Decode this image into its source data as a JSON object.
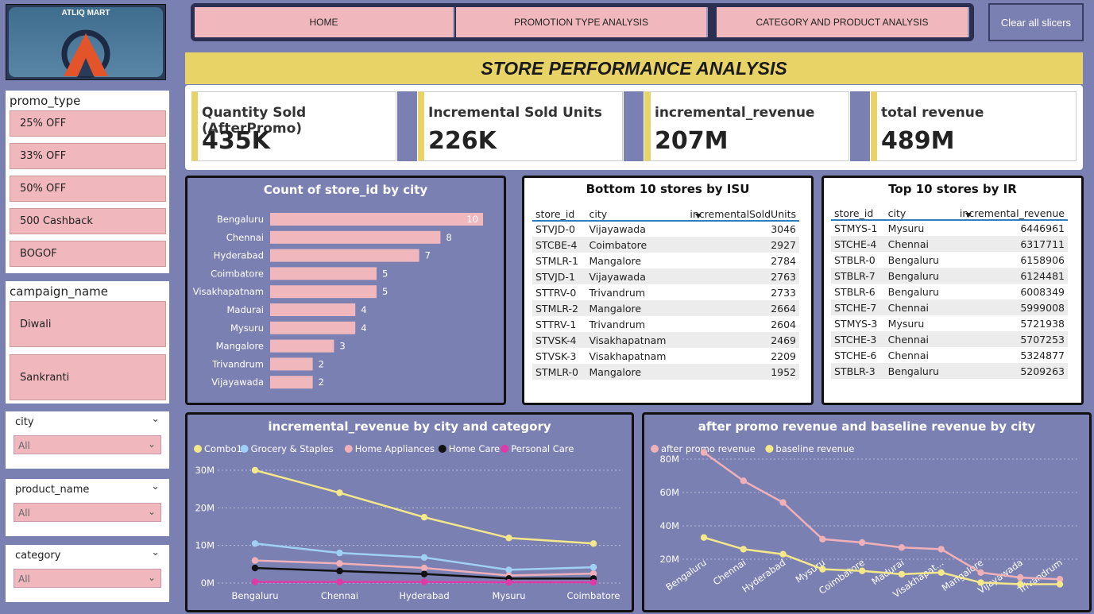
{
  "logo": {
    "brand": "ATLIQ MART"
  },
  "nav": {
    "home": "HOME",
    "promo": "PROMOTION TYPE ANALYSIS",
    "category": "CATEGORY AND PRODUCT ANALYSIS",
    "clear": "Clear all slicers"
  },
  "page_title": "STORE PERFORMANCE ANALYSIS",
  "kpis": [
    {
      "label": "Quantity Sold (AfterPromo)",
      "value": "435K"
    },
    {
      "label": "Incremental Sold Units",
      "value": "226K"
    },
    {
      "label": "incremental_revenue",
      "value": "207M"
    },
    {
      "label": "total revenue",
      "value": "489M"
    }
  ],
  "slicers": {
    "promo_type": {
      "title": "promo_type",
      "items": [
        "25% OFF",
        "33% OFF",
        "50% OFF",
        "500 Cashback",
        "BOGOF"
      ]
    },
    "campaign": {
      "title": "campaign_name",
      "items": [
        "Diwali",
        "Sankranti"
      ]
    },
    "city": {
      "title": "city",
      "value": "All"
    },
    "product": {
      "title": "product_name",
      "value": "All"
    },
    "category": {
      "title": "category",
      "value": "All"
    }
  },
  "colors": {
    "pink": "#f0b8bd",
    "yellow": "#e8d466",
    "bg": "#7b80b3"
  },
  "bottom10": {
    "title": "Bottom 10 stores by ISU",
    "headers": [
      "store_id",
      "city",
      "incrementalSoldUnits"
    ],
    "rows": [
      [
        "STVJD-0",
        "Vijayawada",
        "3046"
      ],
      [
        "STCBE-4",
        "Coimbatore",
        "2927"
      ],
      [
        "STMLR-1",
        "Mangalore",
        "2784"
      ],
      [
        "STVJD-1",
        "Vijayawada",
        "2763"
      ],
      [
        "STTRV-0",
        "Trivandrum",
        "2733"
      ],
      [
        "STMLR-2",
        "Mangalore",
        "2664"
      ],
      [
        "STTRV-1",
        "Trivandrum",
        "2604"
      ],
      [
        "STVSK-4",
        "Visakhapatnam",
        "2469"
      ],
      [
        "STVSK-3",
        "Visakhapatnam",
        "2209"
      ],
      [
        "STMLR-0",
        "Mangalore",
        "1952"
      ]
    ]
  },
  "top10": {
    "title": "Top 10 stores by IR",
    "headers": [
      "store_id",
      "city",
      "incremental_revenue"
    ],
    "rows": [
      [
        "STMYS-1",
        "Mysuru",
        "6446961"
      ],
      [
        "STCHE-4",
        "Chennai",
        "6317711"
      ],
      [
        "STBLR-0",
        "Bengaluru",
        "6158906"
      ],
      [
        "STBLR-7",
        "Bengaluru",
        "6124481"
      ],
      [
        "STBLR-6",
        "Bengaluru",
        "6008349"
      ],
      [
        "STCHE-7",
        "Chennai",
        "5999008"
      ],
      [
        "STMYS-3",
        "Mysuru",
        "5721938"
      ],
      [
        "STCHE-3",
        "Chennai",
        "5707253"
      ],
      [
        "STCHE-6",
        "Chennai",
        "5324877"
      ],
      [
        "STBLR-3",
        "Bengaluru",
        "5209263"
      ]
    ]
  },
  "chart_data": [
    {
      "type": "bar",
      "title": "Count of store_id by city",
      "categories": [
        "Bengaluru",
        "Chennai",
        "Hyderabad",
        "Coimbatore",
        "Visakhapatnam",
        "Madurai",
        "Mysuru",
        "Mangalore",
        "Trivandrum",
        "Vijayawada"
      ],
      "values": [
        10,
        8,
        7,
        5,
        5,
        4,
        4,
        3,
        2,
        2
      ],
      "color": "#f0b8bd"
    },
    {
      "type": "line",
      "title": "incremental_revenue by city and category",
      "categories": [
        "Bengaluru",
        "Chennai",
        "Hyderabad",
        "Mysuru",
        "Coimbatore"
      ],
      "yticks": [
        "0M",
        "10M",
        "20M",
        "30M"
      ],
      "ylim": [
        0,
        30
      ],
      "series": [
        {
          "name": "Combo1",
          "color": "#f5e88a",
          "values": [
            30,
            24,
            17.5,
            12,
            10.5
          ]
        },
        {
          "name": "Grocery & Staples",
          "color": "#9fd0f5",
          "values": [
            10.5,
            8,
            6.8,
            3.5,
            4.2
          ]
        },
        {
          "name": "Home Appliances",
          "color": "#f0b0b8",
          "values": [
            6,
            5.2,
            4,
            2,
            2.5
          ]
        },
        {
          "name": "Home Care",
          "color": "#111111",
          "values": [
            4,
            3.2,
            2.4,
            1.2,
            1.2
          ]
        },
        {
          "name": "Personal Care",
          "color": "#e03aa8",
          "values": [
            0.3,
            0.3,
            0.3,
            0.2,
            0.2
          ]
        }
      ]
    },
    {
      "type": "line",
      "title": "after promo revenue and baseline revenue by city",
      "categories": [
        "Bengaluru",
        "Chennai",
        "Hyderabad",
        "Mysuru",
        "Coimbatore",
        "Madurai",
        "Visakhapat...",
        "Mangalore",
        "Vijayawada",
        "Trivandrum"
      ],
      "yticks": [
        "20M",
        "40M",
        "60M",
        "80M"
      ],
      "ylim": [
        0,
        90
      ],
      "series": [
        {
          "name": "after promo revenue",
          "color": "#f0b0b8",
          "values": [
            84,
            67,
            54,
            32,
            30,
            27,
            26,
            12,
            9,
            8
          ]
        },
        {
          "name": "baseline revenue",
          "color": "#f5e88a",
          "values": [
            33,
            26,
            23,
            14,
            13,
            11,
            12,
            6,
            5,
            5
          ]
        }
      ]
    }
  ]
}
